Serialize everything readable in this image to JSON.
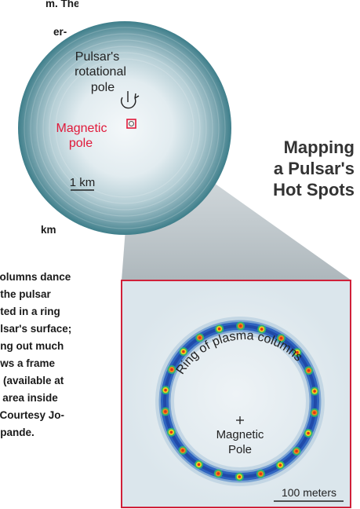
{
  "title": [
    "Mapping",
    "a Pulsar's",
    "Hot Spots"
  ],
  "top_caption": [
    "m. The",
    "er-"
  ],
  "left_fragments": [
    "km"
  ],
  "body_caption": [
    "columns dance",
    "f the pulsar",
    "oted in a ring",
    "ulsar's surface;",
    "ting out much",
    "ows a frame",
    "g (available at",
    "e area inside",
    ". Courtesy Jo-",
    "hpande."
  ],
  "pulsar": {
    "rotational_pole_label": [
      "Pulsar's",
      "rotational",
      "pole"
    ],
    "magnetic_pole_label": [
      "Magnetic",
      "pole"
    ],
    "scale_label": "1 km"
  },
  "inset": {
    "ring_label": "Ring of plasma columns",
    "center_label": [
      "Magnetic",
      "Pole"
    ],
    "scale_label": "100 meters"
  },
  "colors": {
    "magnetic_red": "#e0193a",
    "pulsar_edge": "#3d7f8c",
    "pulsar_center": "#f1f6f8",
    "inset_border": "#d02039",
    "inset_bg": "#e3ecf1"
  }
}
